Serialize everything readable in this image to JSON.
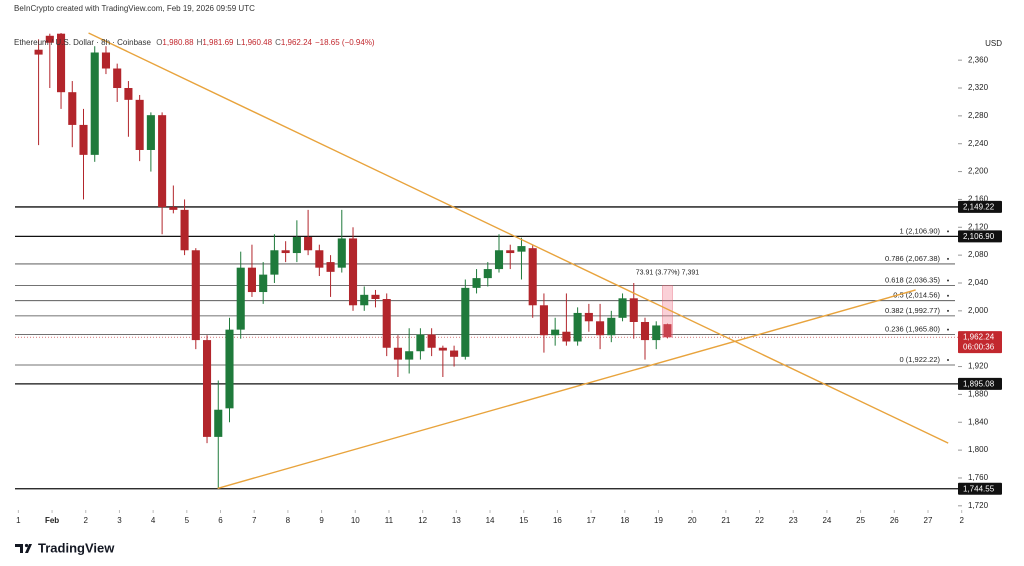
{
  "branding": "TradingView",
  "chart_data": {
    "type": "candlestick",
    "credit": "BeInCrypto created with TradingView.com, Feb 19, 2026 09:59 UTC",
    "title": "Ethereum / U.S. Dollar · 8h · Coinbase",
    "ohlc": [
      {
        "key": "O",
        "value": "1,980.88"
      },
      {
        "key": "H",
        "value": "1,981.69"
      },
      {
        "key": "L",
        "value": "1,960.48"
      },
      {
        "key": "C",
        "value": "1,962.24"
      }
    ],
    "change": "−18.65 (−0.94%)",
    "y_unit": "USD",
    "up_color": "#1f7a3b",
    "down_color": "#b2252b",
    "trend_color": "#e8a33c",
    "x": [
      0,
      1,
      2,
      3,
      4,
      5,
      6,
      7,
      8,
      9,
      10,
      11,
      12,
      13,
      14,
      15,
      16,
      17,
      18,
      19,
      20,
      21,
      22,
      23,
      24,
      25,
      26,
      27,
      28,
      29,
      30,
      31,
      32,
      33,
      34,
      35,
      36,
      37,
      38,
      39,
      40,
      41,
      42,
      43,
      44,
      45,
      46,
      47,
      48,
      49,
      50,
      51,
      52,
      53,
      54,
      55,
      56
    ],
    "open": [
      2375,
      2395,
      2398,
      2314,
      2267,
      2224,
      2371,
      2348,
      2320,
      2303,
      2231,
      2281,
      2149,
      2145,
      2087,
      1958,
      1819,
      1860,
      1973,
      2062,
      2027,
      2052,
      2087,
      2083,
      2106,
      2087,
      2070,
      2062,
      2104,
      2008,
      2023,
      2017,
      1947,
      1930,
      1942,
      1966,
      1947,
      1943,
      1934,
      2033,
      2047,
      2060,
      2087,
      2085,
      2090,
      2008,
      1965,
      1970,
      1956,
      1997,
      1985,
      1965,
      1990,
      2018,
      1984,
      1958,
      1980.88
    ],
    "high": [
      2390,
      2398,
      2399,
      2330,
      2290,
      2380,
      2380,
      2355,
      2330,
      2310,
      2285,
      2285,
      2180,
      2160,
      2090,
      1965,
      1900,
      1990,
      2085,
      2095,
      2070,
      2110,
      2100,
      2130,
      2145,
      2095,
      2080,
      2145,
      2120,
      2035,
      2030,
      2025,
      1965,
      1975,
      1975,
      1975,
      1950,
      1950,
      2045,
      2060,
      2070,
      2110,
      2095,
      2105,
      2095,
      2025,
      1990,
      2025,
      2005,
      2010,
      2010,
      2000,
      2025,
      2040,
      1990,
      1985,
      1981.69
    ],
    "low": [
      2238,
      2320,
      2290,
      2235,
      2160,
      2214,
      2340,
      2300,
      2250,
      2215,
      2200,
      2110,
      2140,
      2080,
      1945,
      1810,
      1745,
      1840,
      1960,
      2020,
      2010,
      2040,
      2070,
      2070,
      2080,
      2050,
      2020,
      2055,
      2000,
      2000,
      2005,
      1935,
      1905,
      1910,
      1930,
      1935,
      1905,
      1920,
      1930,
      2025,
      2035,
      2055,
      2060,
      2045,
      1990,
      1940,
      1950,
      1950,
      1950,
      1970,
      1945,
      1955,
      1985,
      1960,
      1930,
      1945,
      1960.48
    ],
    "close": [
      2368,
      2385,
      2314,
      2267,
      2224,
      2371,
      2348,
      2320,
      2303,
      2231,
      2281,
      2149,
      2145,
      2087,
      1958,
      1819,
      1858,
      1973,
      2062,
      2027,
      2052,
      2087,
      2083,
      2106,
      2087,
      2062,
      2056,
      2104,
      2008,
      2023,
      2017,
      1947,
      1930,
      1942,
      1966,
      1947,
      1943,
      1934,
      2033,
      2047,
      2060,
      2087,
      2083,
      2093,
      2008,
      1965,
      1973,
      1956,
      1997,
      1985,
      1965,
      1990,
      2018,
      1984,
      1958,
      1979,
      1962.24
    ],
    "xlim": [
      -2.1,
      82.05
    ],
    "xticks": [
      {
        "value": -1.8,
        "label": "1"
      },
      {
        "value": 1.2,
        "label": "Feb"
      },
      {
        "value": 4.2,
        "label": "2"
      },
      {
        "value": 7.2,
        "label": "3"
      },
      {
        "value": 10.2,
        "label": "4"
      },
      {
        "value": 13.2,
        "label": "5"
      },
      {
        "value": 16.2,
        "label": "6"
      },
      {
        "value": 19.2,
        "label": "7"
      },
      {
        "value": 22.2,
        "label": "8"
      },
      {
        "value": 25.2,
        "label": "9"
      },
      {
        "value": 28.2,
        "label": "10"
      },
      {
        "value": 31.2,
        "label": "11"
      },
      {
        "value": 34.2,
        "label": "12"
      },
      {
        "value": 37.2,
        "label": "13"
      },
      {
        "value": 40.2,
        "label": "14"
      },
      {
        "value": 43.2,
        "label": "15"
      },
      {
        "value": 46.2,
        "label": "16"
      },
      {
        "value": 49.2,
        "label": "17"
      },
      {
        "value": 52.2,
        "label": "18"
      },
      {
        "value": 55.2,
        "label": "19"
      },
      {
        "value": 58.2,
        "label": "20"
      },
      {
        "value": 61.2,
        "label": "21"
      },
      {
        "value": 64.2,
        "label": "22"
      },
      {
        "value": 67.2,
        "label": "23"
      },
      {
        "value": 70.2,
        "label": "24"
      },
      {
        "value": 73.2,
        "label": "25"
      },
      {
        "value": 76.2,
        "label": "26"
      },
      {
        "value": 79.2,
        "label": "27"
      },
      {
        "value": 82.2,
        "label": "2"
      }
    ],
    "ylim": [
      1714,
      2399
    ],
    "yticks": [
      {
        "value": 1720,
        "label": "1,720"
      },
      {
        "value": 1760,
        "label": "1,760"
      },
      {
        "value": 1800,
        "label": "1,800"
      },
      {
        "value": 1840,
        "label": "1,840"
      },
      {
        "value": 1880,
        "label": "1,880"
      },
      {
        "value": 1920,
        "label": "1,920"
      },
      {
        "value": 1960,
        "label": "1,960"
      },
      {
        "value": 2000,
        "label": "2,000"
      },
      {
        "value": 2040,
        "label": "2,040"
      },
      {
        "value": 2080,
        "label": "2,080"
      },
      {
        "value": 2120,
        "label": "2,120"
      },
      {
        "value": 2160,
        "label": "2,160"
      },
      {
        "value": 2200,
        "label": "2,200"
      },
      {
        "value": 2240,
        "label": "2,240"
      },
      {
        "value": 2280,
        "label": "2,280"
      },
      {
        "value": 2320,
        "label": "2,320"
      },
      {
        "value": 2360,
        "label": "2,360"
      }
    ],
    "horizontal_lines": [
      {
        "value": 2149.22,
        "label": "2,149.22"
      },
      {
        "value": 2106.9,
        "label": "2,106.90"
      },
      {
        "value": 1895.08,
        "label": "1,895.08"
      },
      {
        "value": 1744.55,
        "label": "1,744.55"
      }
    ],
    "fib_levels": [
      {
        "value": 2106.9,
        "label": "1 (2,106.90)"
      },
      {
        "value": 2067.38,
        "label": "0.786 (2,067.38)"
      },
      {
        "value": 2036.35,
        "label": "0.618 (2,036.35)"
      },
      {
        "value": 2014.56,
        "label": "0.5 (2,014.56)"
      },
      {
        "value": 1992.77,
        "label": "0.382 (1,992.77)"
      },
      {
        "value": 1965.8,
        "label": "0.236 (1,965.80)"
      },
      {
        "value": 1922.22,
        "label": "0 (1,922.22)"
      }
    ],
    "current_price": {
      "value": 1962.24,
      "label": "1,962.24",
      "countdown": "06:00:36"
    },
    "measure": {
      "label": "73.91 (3.77%) 7,391",
      "x": 56,
      "from": 1962.24,
      "to": 2036.15
    },
    "trendlines": [
      {
        "points": [
          [
            4.45,
            2399
          ],
          [
            81,
            1810
          ]
        ]
      },
      {
        "points": [
          [
            15.94,
            1745
          ],
          [
            78.1,
            2030
          ]
        ]
      }
    ]
  }
}
